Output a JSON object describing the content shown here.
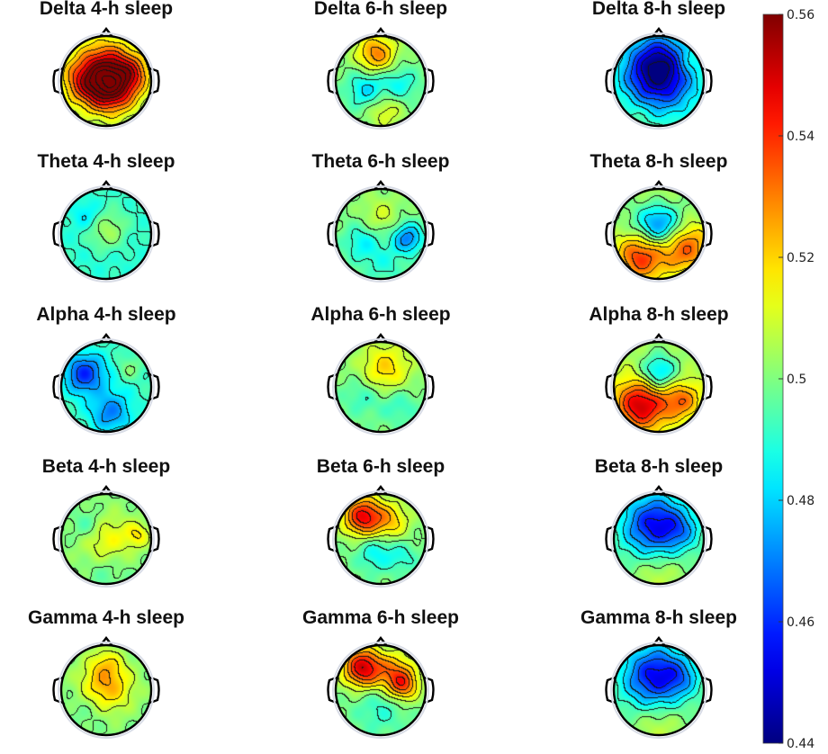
{
  "chart_data": {
    "type": "heatmap",
    "description_type": "topographic-scalp-maps",
    "rows": [
      "Delta",
      "Theta",
      "Alpha",
      "Beta",
      "Gamma"
    ],
    "columns": [
      "4-h sleep",
      "6-h sleep",
      "8-h sleep"
    ],
    "panels": [
      {
        "title": "Delta 4-h sleep",
        "band": "Delta",
        "condition": "4-h sleep",
        "blobs": [
          [
            0.5,
            0.45,
            0.25,
            0.06
          ],
          [
            0.55,
            0.55,
            0.18,
            0.03
          ],
          [
            0.2,
            0.5,
            0.15,
            0.015
          ],
          [
            0.82,
            0.4,
            0.12,
            0.015
          ]
        ]
      },
      {
        "title": "Delta 6-h sleep",
        "band": "Delta",
        "condition": "6-h sleep",
        "blobs": [
          [
            0.45,
            0.2,
            0.15,
            0.03
          ],
          [
            0.35,
            0.6,
            0.15,
            -0.02
          ],
          [
            0.7,
            0.55,
            0.15,
            -0.015
          ],
          [
            0.55,
            0.8,
            0.15,
            0.015
          ]
        ]
      },
      {
        "title": "Delta 8-h sleep",
        "band": "Delta",
        "condition": "8-h sleep",
        "blobs": [
          [
            0.5,
            0.45,
            0.3,
            -0.05
          ],
          [
            0.5,
            0.3,
            0.2,
            -0.02
          ],
          [
            0.3,
            0.85,
            0.15,
            0.005
          ],
          [
            0.8,
            0.3,
            0.12,
            0.01
          ]
        ]
      },
      {
        "title": "Theta 4-h sleep",
        "band": "Theta",
        "condition": "4-h sleep",
        "blobs": [
          [
            0.5,
            0.45,
            0.18,
            0.02
          ],
          [
            0.5,
            0.5,
            0.5,
            -0.015
          ],
          [
            0.3,
            0.3,
            0.12,
            -0.01
          ]
        ]
      },
      {
        "title": "Theta 6-h sleep",
        "band": "Theta",
        "condition": "6-h sleep",
        "blobs": [
          [
            0.3,
            0.6,
            0.15,
            -0.015
          ],
          [
            0.8,
            0.55,
            0.12,
            -0.03
          ],
          [
            0.5,
            0.3,
            0.15,
            0.01
          ],
          [
            0.55,
            0.85,
            0.15,
            -0.01
          ]
        ]
      },
      {
        "title": "Theta 8-h sleep",
        "band": "Theta",
        "condition": "8-h sleep",
        "blobs": [
          [
            0.5,
            0.4,
            0.18,
            -0.04
          ],
          [
            0.3,
            0.75,
            0.2,
            0.04
          ],
          [
            0.8,
            0.65,
            0.2,
            0.035
          ],
          [
            0.5,
            0.15,
            0.2,
            0.01
          ]
        ]
      },
      {
        "title": "Alpha 4-h sleep",
        "band": "Alpha",
        "condition": "4-h sleep",
        "blobs": [
          [
            0.25,
            0.35,
            0.15,
            -0.03
          ],
          [
            0.5,
            0.5,
            0.5,
            -0.012
          ],
          [
            0.75,
            0.3,
            0.1,
            0.01
          ],
          [
            0.55,
            0.8,
            0.15,
            -0.02
          ]
        ]
      },
      {
        "title": "Alpha 6-h sleep",
        "band": "Alpha",
        "condition": "6-h sleep",
        "blobs": [
          [
            0.55,
            0.3,
            0.2,
            0.02
          ],
          [
            0.3,
            0.6,
            0.15,
            -0.01
          ],
          [
            0.7,
            0.7,
            0.15,
            -0.01
          ]
        ]
      },
      {
        "title": "Alpha 8-h sleep",
        "band": "Alpha",
        "condition": "8-h sleep",
        "blobs": [
          [
            0.5,
            0.35,
            0.15,
            -0.03
          ],
          [
            0.3,
            0.7,
            0.2,
            0.045
          ],
          [
            0.75,
            0.65,
            0.15,
            0.025
          ],
          [
            0.5,
            0.5,
            0.5,
            0.008
          ]
        ]
      },
      {
        "title": "Beta 4-h sleep",
        "band": "Beta",
        "condition": "4-h sleep",
        "blobs": [
          [
            0.5,
            0.5,
            0.2,
            0.015
          ],
          [
            0.3,
            0.35,
            0.12,
            -0.01
          ],
          [
            0.85,
            0.45,
            0.1,
            0.015
          ],
          [
            0.5,
            0.85,
            0.15,
            -0.005
          ]
        ]
      },
      {
        "title": "Beta 6-h sleep",
        "band": "Beta",
        "condition": "6-h sleep",
        "blobs": [
          [
            0.3,
            0.25,
            0.15,
            0.045
          ],
          [
            0.6,
            0.3,
            0.15,
            0.02
          ],
          [
            0.45,
            0.65,
            0.15,
            -0.015
          ],
          [
            0.75,
            0.7,
            0.12,
            -0.01
          ]
        ]
      },
      {
        "title": "Beta 8-h sleep",
        "band": "Beta",
        "condition": "8-h sleep",
        "blobs": [
          [
            0.45,
            0.35,
            0.25,
            -0.045
          ],
          [
            0.75,
            0.4,
            0.15,
            -0.015
          ],
          [
            0.5,
            0.85,
            0.2,
            0.01
          ]
        ]
      },
      {
        "title": "Gamma 4-h sleep",
        "band": "Gamma",
        "condition": "4-h sleep",
        "blobs": [
          [
            0.5,
            0.45,
            0.2,
            0.025
          ],
          [
            0.5,
            0.2,
            0.12,
            0.01
          ],
          [
            0.3,
            0.7,
            0.15,
            -0.005
          ]
        ]
      },
      {
        "title": "Gamma 6-h sleep",
        "band": "Gamma",
        "condition": "6-h sleep",
        "blobs": [
          [
            0.3,
            0.25,
            0.15,
            0.05
          ],
          [
            0.65,
            0.3,
            0.15,
            0.025
          ],
          [
            0.75,
            0.45,
            0.12,
            0.03
          ],
          [
            0.5,
            0.7,
            0.2,
            -0.01
          ]
        ]
      },
      {
        "title": "Gamma 8-h sleep",
        "band": "Gamma",
        "condition": "8-h sleep",
        "blobs": [
          [
            0.45,
            0.35,
            0.25,
            -0.045
          ],
          [
            0.75,
            0.35,
            0.15,
            -0.015
          ],
          [
            0.5,
            0.85,
            0.2,
            0.01
          ]
        ]
      }
    ],
    "colorbar": {
      "min": 0.44,
      "max": 0.56,
      "colormap": "jet",
      "ticks": [
        0.44,
        0.46,
        0.48,
        0.5,
        0.52,
        0.54,
        0.56
      ],
      "tick_labels": [
        "0.44",
        "0.46",
        "0.48",
        "0.5",
        "0.52",
        "0.54",
        "0.56"
      ]
    },
    "base_value": 0.5,
    "contour_lines": true,
    "legend": "none",
    "grid": false
  }
}
